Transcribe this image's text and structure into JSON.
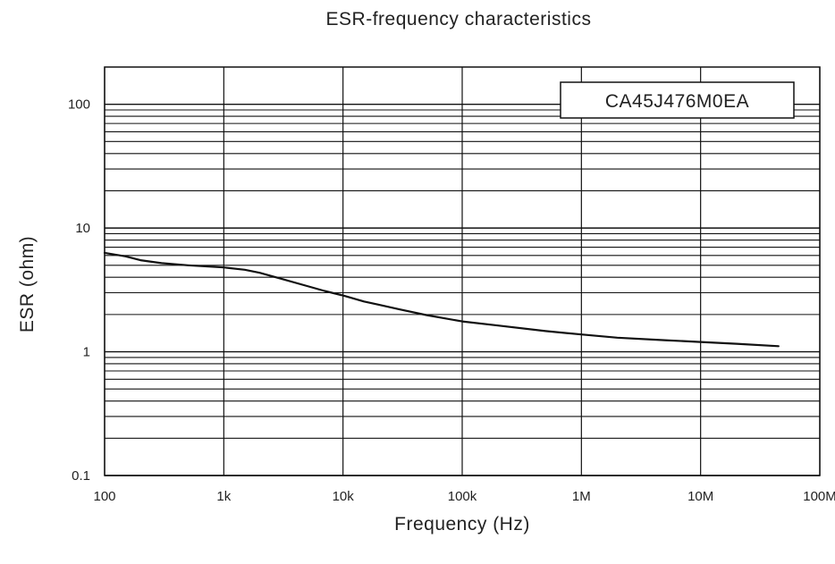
{
  "chart_data": {
    "type": "line",
    "title": "ESR-frequency characteristics",
    "xlabel": "Frequency (Hz)",
    "ylabel": "ESR (ohm)",
    "x_scale": "log",
    "y_scale": "log",
    "xlim": [
      100,
      100000000
    ],
    "ylim": [
      0.1,
      200
    ],
    "x_ticks": [
      {
        "value": 100,
        "label": "100"
      },
      {
        "value": 1000,
        "label": "1k"
      },
      {
        "value": 10000,
        "label": "10k"
      },
      {
        "value": 100000,
        "label": "100k"
      },
      {
        "value": 1000000,
        "label": "1M"
      },
      {
        "value": 10000000,
        "label": "10M"
      },
      {
        "value": 100000000,
        "label": "100M"
      }
    ],
    "y_ticks": [
      {
        "value": 0.1,
        "label": "0.1"
      },
      {
        "value": 1,
        "label": "1"
      },
      {
        "value": 10,
        "label": "10"
      },
      {
        "value": 100,
        "label": "100"
      }
    ],
    "grid": true,
    "legend_position": "top-right",
    "series": [
      {
        "name": "CA45J476M0EA",
        "color": "#111111",
        "points": [
          {
            "x": 100,
            "y": 6.3
          },
          {
            "x": 150,
            "y": 5.9
          },
          {
            "x": 200,
            "y": 5.5
          },
          {
            "x": 300,
            "y": 5.2
          },
          {
            "x": 500,
            "y": 5.0
          },
          {
            "x": 1000,
            "y": 4.8
          },
          {
            "x": 1500,
            "y": 4.6
          },
          {
            "x": 2000,
            "y": 4.35
          },
          {
            "x": 3000,
            "y": 3.9
          },
          {
            "x": 5000,
            "y": 3.4
          },
          {
            "x": 7000,
            "y": 3.1
          },
          {
            "x": 10000,
            "y": 2.85
          },
          {
            "x": 15000,
            "y": 2.55
          },
          {
            "x": 20000,
            "y": 2.4
          },
          {
            "x": 30000,
            "y": 2.2
          },
          {
            "x": 50000,
            "y": 1.98
          },
          {
            "x": 100000,
            "y": 1.76
          },
          {
            "x": 200000,
            "y": 1.63
          },
          {
            "x": 500000,
            "y": 1.47
          },
          {
            "x": 1000000,
            "y": 1.38
          },
          {
            "x": 2000000,
            "y": 1.3
          },
          {
            "x": 5000000,
            "y": 1.24
          },
          {
            "x": 10000000,
            "y": 1.2
          },
          {
            "x": 20000000,
            "y": 1.16
          },
          {
            "x": 45000000,
            "y": 1.11
          }
        ]
      }
    ]
  }
}
